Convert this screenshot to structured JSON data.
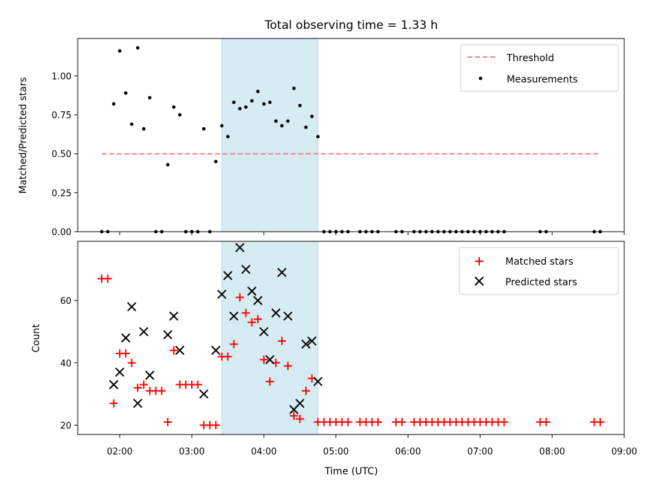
{
  "chart_data": [
    {
      "type": "scatter",
      "title": "Total observing time = 1.33 h",
      "xlabel": "",
      "ylabel": "Matched/Predicted stars",
      "xlim": [
        "01:25",
        "09:00"
      ],
      "ylim": [
        0,
        1.24
      ],
      "yticks": [
        0.0,
        0.25,
        0.5,
        0.75,
        1.0
      ],
      "ytick_labels": [
        "0.00",
        "0.25",
        "0.50",
        "0.75",
        "1.00"
      ],
      "highlight_span": [
        "03:25",
        "04:45"
      ],
      "grid": false,
      "legend": "upper right",
      "series": [
        {
          "name": "Threshold",
          "kind": "dashed-line",
          "color": "#ff7f7f",
          "x": [
            "01:45",
            "08:40"
          ],
          "y": [
            0.5,
            0.5
          ]
        },
        {
          "name": "Measurements",
          "kind": "points",
          "color": "#000000",
          "points": [
            [
              "01:45",
              0.0
            ],
            [
              "01:50",
              0.0
            ],
            [
              "01:55",
              0.82
            ],
            [
              "02:00",
              1.16
            ],
            [
              "02:05",
              0.89
            ],
            [
              "02:10",
              0.69
            ],
            [
              "02:15",
              1.18
            ],
            [
              "02:20",
              0.66
            ],
            [
              "02:25",
              0.86
            ],
            [
              "02:30",
              0.0
            ],
            [
              "02:35",
              0.0
            ],
            [
              "02:40",
              0.43
            ],
            [
              "02:45",
              0.8
            ],
            [
              "02:50",
              0.75
            ],
            [
              "02:55",
              0.0
            ],
            [
              "03:00",
              0.0
            ],
            [
              "03:05",
              0.0
            ],
            [
              "03:10",
              0.66
            ],
            [
              "03:15",
              0.0
            ],
            [
              "03:20",
              0.45
            ],
            [
              "03:25",
              0.68
            ],
            [
              "03:30",
              0.61
            ],
            [
              "03:35",
              0.83
            ],
            [
              "03:40",
              0.79
            ],
            [
              "03:45",
              0.8
            ],
            [
              "03:50",
              0.84
            ],
            [
              "03:55",
              0.9
            ],
            [
              "04:00",
              0.82
            ],
            [
              "04:05",
              0.83
            ],
            [
              "04:10",
              0.71
            ],
            [
              "04:15",
              0.68
            ],
            [
              "04:20",
              0.71
            ],
            [
              "04:25",
              0.92
            ],
            [
              "04:30",
              0.81
            ],
            [
              "04:35",
              0.67
            ],
            [
              "04:40",
              0.74
            ],
            [
              "04:45",
              0.61
            ],
            [
              "04:50",
              0.0
            ],
            [
              "04:55",
              0.0
            ],
            [
              "05:00",
              0.0
            ],
            [
              "05:05",
              0.0
            ],
            [
              "05:10",
              0.0
            ],
            [
              "05:20",
              0.0
            ],
            [
              "05:25",
              0.0
            ],
            [
              "05:30",
              0.0
            ],
            [
              "05:35",
              0.0
            ],
            [
              "05:50",
              0.0
            ],
            [
              "05:55",
              0.0
            ],
            [
              "06:05",
              0.0
            ],
            [
              "06:10",
              0.0
            ],
            [
              "06:15",
              0.0
            ],
            [
              "06:20",
              0.0
            ],
            [
              "06:25",
              0.0
            ],
            [
              "06:30",
              0.0
            ],
            [
              "06:35",
              0.0
            ],
            [
              "06:40",
              0.0
            ],
            [
              "06:45",
              0.0
            ],
            [
              "06:50",
              0.0
            ],
            [
              "06:55",
              0.0
            ],
            [
              "07:00",
              0.0
            ],
            [
              "07:05",
              0.0
            ],
            [
              "07:10",
              0.0
            ],
            [
              "07:15",
              0.0
            ],
            [
              "07:20",
              0.0
            ],
            [
              "07:50",
              0.0
            ],
            [
              "07:55",
              0.0
            ],
            [
              "08:35",
              0.0
            ],
            [
              "08:40",
              0.0
            ]
          ]
        }
      ]
    },
    {
      "type": "scatter",
      "title": "",
      "xlabel": "Time (UTC)",
      "ylabel": "Count",
      "xlim": [
        "01:25",
        "09:00"
      ],
      "xticks": [
        "02:00",
        "03:00",
        "04:00",
        "05:00",
        "06:00",
        "07:00",
        "08:00",
        "09:00"
      ],
      "ylim": [
        17,
        79
      ],
      "yticks": [
        20,
        40,
        60
      ],
      "highlight_span": [
        "03:25",
        "04:45"
      ],
      "grid": false,
      "legend": "upper right",
      "series": [
        {
          "name": "Matched stars",
          "kind": "plus",
          "color": "#ff0000",
          "points": [
            [
              "01:45",
              67
            ],
            [
              "01:50",
              67
            ],
            [
              "01:55",
              27
            ],
            [
              "02:00",
              43
            ],
            [
              "02:05",
              43
            ],
            [
              "02:10",
              40
            ],
            [
              "02:15",
              32
            ],
            [
              "02:20",
              33
            ],
            [
              "02:25",
              31
            ],
            [
              "02:30",
              31
            ],
            [
              "02:35",
              31
            ],
            [
              "02:40",
              21
            ],
            [
              "02:45",
              44
            ],
            [
              "02:50",
              33
            ],
            [
              "02:55",
              33
            ],
            [
              "03:00",
              33
            ],
            [
              "03:05",
              33
            ],
            [
              "03:10",
              20
            ],
            [
              "03:15",
              20
            ],
            [
              "03:20",
              20
            ],
            [
              "03:25",
              42
            ],
            [
              "03:30",
              42
            ],
            [
              "03:35",
              46
            ],
            [
              "03:40",
              61
            ],
            [
              "03:45",
              56
            ],
            [
              "03:50",
              53
            ],
            [
              "03:55",
              54
            ],
            [
              "04:00",
              41
            ],
            [
              "04:05",
              34
            ],
            [
              "04:10",
              40
            ],
            [
              "04:15",
              47
            ],
            [
              "04:20",
              39
            ],
            [
              "04:25",
              23
            ],
            [
              "04:30",
              22
            ],
            [
              "04:35",
              31
            ],
            [
              "04:40",
              35
            ],
            [
              "04:45",
              21
            ],
            [
              "04:50",
              21
            ],
            [
              "04:55",
              21
            ],
            [
              "05:00",
              21
            ],
            [
              "05:05",
              21
            ],
            [
              "05:10",
              21
            ],
            [
              "05:20",
              21
            ],
            [
              "05:25",
              21
            ],
            [
              "05:30",
              21
            ],
            [
              "05:35",
              21
            ],
            [
              "05:50",
              21
            ],
            [
              "05:55",
              21
            ],
            [
              "06:05",
              21
            ],
            [
              "06:10",
              21
            ],
            [
              "06:15",
              21
            ],
            [
              "06:20",
              21
            ],
            [
              "06:25",
              21
            ],
            [
              "06:30",
              21
            ],
            [
              "06:35",
              21
            ],
            [
              "06:40",
              21
            ],
            [
              "06:45",
              21
            ],
            [
              "06:50",
              21
            ],
            [
              "06:55",
              21
            ],
            [
              "07:00",
              21
            ],
            [
              "07:05",
              21
            ],
            [
              "07:10",
              21
            ],
            [
              "07:15",
              21
            ],
            [
              "07:20",
              21
            ],
            [
              "07:50",
              21
            ],
            [
              "07:55",
              21
            ],
            [
              "08:35",
              21
            ],
            [
              "08:40",
              21
            ]
          ]
        },
        {
          "name": "Predicted stars",
          "kind": "x",
          "color": "#000000",
          "points": [
            [
              "01:55",
              33
            ],
            [
              "02:00",
              37
            ],
            [
              "02:05",
              48
            ],
            [
              "02:10",
              58
            ],
            [
              "02:15",
              27
            ],
            [
              "02:20",
              50
            ],
            [
              "02:25",
              36
            ],
            [
              "02:40",
              49
            ],
            [
              "02:45",
              55
            ],
            [
              "02:50",
              44
            ],
            [
              "03:10",
              30
            ],
            [
              "03:20",
              44
            ],
            [
              "03:25",
              62
            ],
            [
              "03:30",
              68
            ],
            [
              "03:35",
              55
            ],
            [
              "03:40",
              77
            ],
            [
              "03:45",
              70
            ],
            [
              "03:50",
              63
            ],
            [
              "03:55",
              60
            ],
            [
              "04:00",
              50
            ],
            [
              "04:05",
              41
            ],
            [
              "04:10",
              56
            ],
            [
              "04:15",
              69
            ],
            [
              "04:20",
              55
            ],
            [
              "04:25",
              25
            ],
            [
              "04:30",
              27
            ],
            [
              "04:35",
              46
            ],
            [
              "04:40",
              47
            ],
            [
              "04:45",
              34
            ]
          ]
        }
      ]
    }
  ]
}
